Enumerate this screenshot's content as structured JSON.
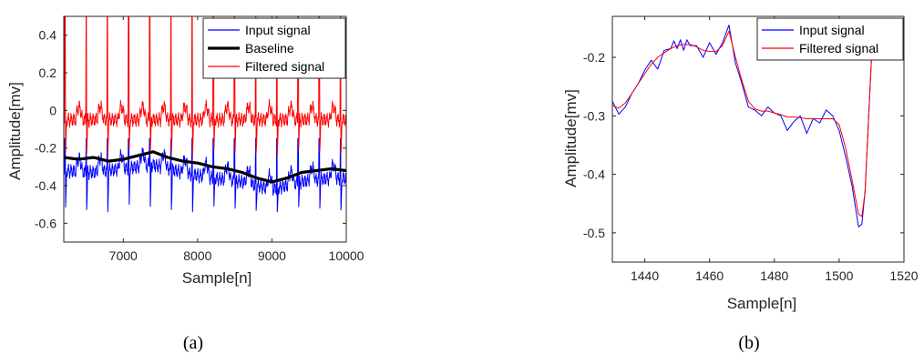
{
  "chart_data": [
    {
      "type": "line",
      "caption": "(a)",
      "xlabel": "Sample[n]",
      "ylabel": "Amplitude[mv]",
      "xlim": [
        6200,
        10000
      ],
      "ylim": [
        -0.7,
        0.5
      ],
      "xticks": [
        7000,
        8000,
        9000,
        10000
      ],
      "yticks": [
        -0.6,
        -0.4,
        -0.2,
        0,
        0.2,
        0.4
      ],
      "ytick_labels": [
        "-0.6",
        "-0.4",
        "-0.2",
        "0",
        "0.2",
        "0.4"
      ],
      "grid": false,
      "legend_position": "top-right",
      "beat_period_samples": 285,
      "first_beat_sample": 6220,
      "series": [
        {
          "name": "Input signal",
          "color": "#0000ff",
          "r_peak": -0.15,
          "s_trough": -0.54,
          "x": [
            6200,
            6600,
            7000,
            7400,
            7800,
            8200,
            8600,
            9000,
            9400,
            9800,
            10000
          ],
          "values": [
            -0.32,
            -0.33,
            -0.31,
            -0.29,
            -0.33,
            -0.36,
            -0.38,
            -0.42,
            -0.38,
            -0.36,
            -0.36
          ]
        },
        {
          "name": "Baseline",
          "color": "#000000",
          "x": [
            6200,
            6400,
            6600,
            6800,
            7000,
            7200,
            7400,
            7600,
            7800,
            8000,
            8200,
            8400,
            8600,
            8800,
            9000,
            9200,
            9400,
            9600,
            9800,
            10000
          ],
          "values": [
            -0.25,
            -0.26,
            -0.25,
            -0.27,
            -0.26,
            -0.24,
            -0.22,
            -0.25,
            -0.27,
            -0.28,
            -0.3,
            -0.31,
            -0.33,
            -0.36,
            -0.38,
            -0.36,
            -0.33,
            -0.32,
            -0.31,
            -0.32
          ]
        },
        {
          "name": "Filtered signal",
          "color": "#ff0000",
          "r_peak": 0.5,
          "s_trough": -0.24,
          "x": [
            6200,
            10000
          ],
          "values": [
            -0.05,
            -0.05
          ]
        }
      ]
    },
    {
      "type": "line",
      "caption": "(b)",
      "xlabel": "Sample[n]",
      "ylabel": "Amplitude[mv]",
      "xlim": [
        1430,
        1520
      ],
      "ylim": [
        -0.55,
        -0.13
      ],
      "xticks": [
        1440,
        1460,
        1480,
        1500,
        1520
      ],
      "yticks": [
        -0.5,
        -0.4,
        -0.3,
        -0.2
      ],
      "ytick_labels": [
        "-0.5",
        "-0.4",
        "-0.3",
        "-0.2"
      ],
      "grid": false,
      "legend_position": "top-right",
      "series": [
        {
          "name": "Input signal",
          "color": "#0000ff",
          "x": [
            1430,
            1432,
            1434,
            1436,
            1438,
            1440,
            1442,
            1444,
            1446,
            1448,
            1449,
            1450,
            1451,
            1452,
            1453,
            1454,
            1456,
            1458,
            1460,
            1462,
            1464,
            1466,
            1468,
            1470,
            1472,
            1474,
            1476,
            1478,
            1480,
            1482,
            1484,
            1486,
            1488,
            1490,
            1492,
            1494,
            1496,
            1498,
            1500,
            1502,
            1504,
            1506,
            1507,
            1508,
            1510
          ],
          "values": [
            -0.275,
            -0.297,
            -0.285,
            -0.262,
            -0.245,
            -0.222,
            -0.205,
            -0.22,
            -0.188,
            -0.185,
            -0.172,
            -0.185,
            -0.17,
            -0.188,
            -0.17,
            -0.18,
            -0.18,
            -0.2,
            -0.175,
            -0.195,
            -0.175,
            -0.145,
            -0.21,
            -0.245,
            -0.285,
            -0.29,
            -0.3,
            -0.285,
            -0.295,
            -0.3,
            -0.325,
            -0.31,
            -0.3,
            -0.33,
            -0.305,
            -0.312,
            -0.29,
            -0.3,
            -0.325,
            -0.37,
            -0.42,
            -0.49,
            -0.485,
            -0.43,
            -0.2
          ]
        },
        {
          "name": "Filtered signal",
          "color": "#ff0000",
          "x": [
            1430,
            1432,
            1434,
            1436,
            1438,
            1440,
            1442,
            1444,
            1446,
            1448,
            1450,
            1452,
            1454,
            1456,
            1458,
            1460,
            1462,
            1464,
            1466,
            1468,
            1470,
            1472,
            1474,
            1476,
            1478,
            1480,
            1482,
            1484,
            1486,
            1488,
            1490,
            1492,
            1494,
            1496,
            1498,
            1500,
            1502,
            1504,
            1506,
            1507,
            1508,
            1510
          ],
          "values": [
            -0.282,
            -0.287,
            -0.278,
            -0.262,
            -0.245,
            -0.228,
            -0.212,
            -0.2,
            -0.192,
            -0.185,
            -0.18,
            -0.178,
            -0.178,
            -0.182,
            -0.188,
            -0.19,
            -0.19,
            -0.18,
            -0.155,
            -0.2,
            -0.24,
            -0.275,
            -0.288,
            -0.292,
            -0.292,
            -0.295,
            -0.298,
            -0.302,
            -0.302,
            -0.303,
            -0.305,
            -0.305,
            -0.305,
            -0.305,
            -0.305,
            -0.315,
            -0.355,
            -0.41,
            -0.468,
            -0.472,
            -0.43,
            -0.2
          ]
        }
      ]
    }
  ]
}
